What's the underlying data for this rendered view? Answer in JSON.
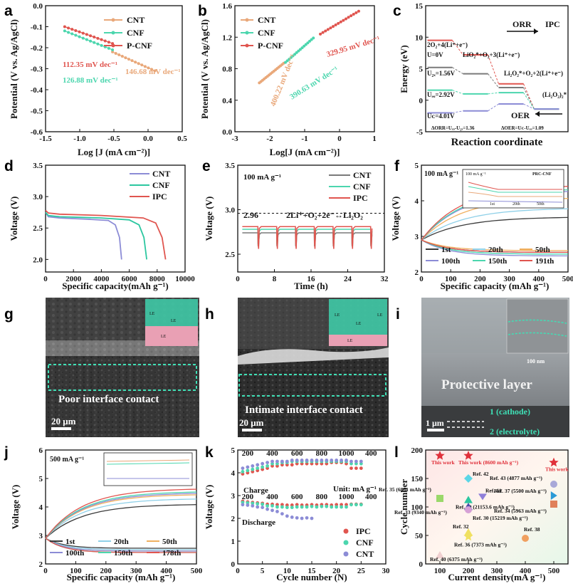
{
  "panel_labels": [
    "a",
    "b",
    "c",
    "d",
    "e",
    "f",
    "g",
    "h",
    "i",
    "j",
    "k",
    "l"
  ],
  "colors": {
    "CNT": "#e9a87a",
    "CNF": "#4cd6ae",
    "PCNF": "#e0554f",
    "IPC": "#e0554f",
    "CNT2": "#8c8cd6",
    "grey": "#7a7a7a"
  },
  "chart_data": [
    {
      "panel": "a",
      "type": "line",
      "xlabel": "Log [J (mA cm⁻²)]",
      "ylabel": "Potential (V vs. Ag/AgCl)",
      "xlim": [
        -1.5,
        0.5
      ],
      "ylim": [
        -0.6,
        0.0
      ],
      "xticks": [
        "-1.5",
        "-1.0",
        "-0.5",
        "0.0",
        "0.5"
      ],
      "yticks": [
        "0.0",
        "-0.1",
        "-0.2",
        "-0.3",
        "-0.4",
        "-0.5",
        "-0.6"
      ],
      "legend": [
        "CNT",
        "CNF",
        "P-CNF"
      ],
      "series": [
        {
          "name": "CNT",
          "x": [
            -0.52,
            0.1
          ],
          "y": [
            -0.22,
            -0.31
          ]
        },
        {
          "name": "CNF",
          "x": [
            -1.22,
            -0.52
          ],
          "y": [
            -0.12,
            -0.21
          ]
        },
        {
          "name": "P-CNF",
          "x": [
            -1.22,
            -0.52
          ],
          "y": [
            -0.1,
            -0.18
          ]
        }
      ],
      "annotations": [
        "112.35 mV dec⁻¹",
        "126.88 mV dec⁻¹",
        "146.68 mV dec⁻¹"
      ]
    },
    {
      "panel": "b",
      "type": "line",
      "xlabel": "Log[J (mA cm⁻²)]",
      "ylabel": "Potential (V vs. Ag/AgCl)",
      "xlim": [
        -3,
        1
      ],
      "ylim": [
        0.0,
        1.6
      ],
      "xticks": [
        "-3",
        "-2",
        "-1",
        "0",
        "1"
      ],
      "yticks": [
        "1.6",
        "1.2",
        "0.8",
        "0.4",
        "0.0"
      ],
      "legend": [
        "CNT",
        "CNF",
        "P-CNF"
      ],
      "series": [
        {
          "name": "CNT",
          "x": [
            -2.3,
            -1.6
          ],
          "y": [
            0.62,
            0.87
          ]
        },
        {
          "name": "CNF",
          "x": [
            -1.55,
            -0.75
          ],
          "y": [
            0.88,
            1.19
          ]
        },
        {
          "name": "P-CNF",
          "x": [
            -0.55,
            0.55
          ],
          "y": [
            1.24,
            1.53
          ]
        }
      ],
      "annotations": [
        "400.22 mV dec⁻¹",
        "390.63 mV dec⁻¹",
        "329.95 mV dec⁻¹"
      ]
    },
    {
      "panel": "c",
      "type": "line",
      "xlabel": "Reaction coordinate",
      "ylabel": "Energy (eV)",
      "ylim": [
        -5,
        15
      ],
      "yticks": [
        "15",
        "10",
        "5",
        "0",
        "-5"
      ],
      "levels": [
        "2O₂+4(Li⁺+e⁻)",
        "LiO₂*+O₂+3(Li⁺+e⁻)",
        "Li₂O₂*+O₂+2(Li⁺+e⁻)",
        "(Li₂O₂)₂*"
      ],
      "potentials": [
        "U=0V",
        "U₂ₓ=1.56V",
        "Uₑₒ=2.92V",
        "Uᴄ=4.01V"
      ],
      "series": [
        {
          "name": "U=0V",
          "y": [
            9.5,
            7.2,
            2.6,
            -1.4
          ]
        },
        {
          "name": "UDC=1.56V",
          "y": [
            5.2,
            4.2,
            2.0,
            -1.4
          ]
        },
        {
          "name": "UEQ=2.92V",
          "y": [
            1.6,
            1.0,
            1.2,
            -1.4
          ]
        },
        {
          "name": "UC=4.01V",
          "y": [
            -2.0,
            -1.7,
            -0.6,
            -1.4
          ]
        }
      ],
      "annotations": [
        "ORR",
        "IPC",
        "OER",
        "ΔORR=Uₑₒ-U₂ₓ=1.36",
        "ΔOER=Uᴄ-Uₑₒ=1.09"
      ]
    },
    {
      "panel": "d",
      "type": "line",
      "xlabel": "Specific capacity(mAh g⁻¹)",
      "ylabel": "Voltage (V)",
      "xlim": [
        0,
        10000
      ],
      "ylim": [
        1.8,
        3.5
      ],
      "xticks": [
        "0",
        "2000",
        "4000",
        "6000",
        "8000",
        "10000"
      ],
      "yticks": [
        "3.5",
        "3.0",
        "2.5",
        "2.0"
      ],
      "legend": [
        "CNT",
        "CNF",
        "IPC"
      ],
      "series": [
        {
          "name": "CNT",
          "x": [
            0,
            200,
            1000,
            3000,
            4500,
            5000,
            5300,
            5450
          ],
          "y": [
            2.75,
            2.68,
            2.66,
            2.64,
            2.62,
            2.55,
            2.35,
            2.0
          ]
        },
        {
          "name": "CNF",
          "x": [
            0,
            200,
            1000,
            4000,
            6000,
            6700,
            7050,
            7250
          ],
          "y": [
            2.75,
            2.7,
            2.68,
            2.66,
            2.63,
            2.55,
            2.35,
            2.0
          ]
        },
        {
          "name": "IPC",
          "x": [
            0,
            200,
            1000,
            4000,
            7000,
            7900,
            8350,
            8600
          ],
          "y": [
            2.78,
            2.74,
            2.72,
            2.7,
            2.66,
            2.58,
            2.35,
            2.0
          ]
        }
      ]
    },
    {
      "panel": "e",
      "type": "line",
      "xlabel": "Time (h)",
      "ylabel": "Voltage (V)",
      "xlim": [
        0,
        32
      ],
      "ylim": [
        2.3,
        3.5
      ],
      "xticks": [
        "0",
        "8",
        "16",
        "24",
        "32"
      ],
      "yticks": [
        "3.5",
        "3.0",
        "2.5"
      ],
      "legend": [
        "CNT",
        "CNF",
        "IPC"
      ],
      "annotations": [
        "100 mA g⁻¹",
        "2.96",
        "2Li⁺+O₂+2e⁻↔Li₂O₂"
      ],
      "reference_line": 2.96
    },
    {
      "panel": "f",
      "type": "line",
      "xlabel": "Specific capacity (mAh g⁻¹)",
      "ylabel": "Voltage (V)",
      "xlim": [
        0,
        500
      ],
      "ylim": [
        2.0,
        5.0
      ],
      "xticks": [
        "0",
        "100",
        "200",
        "300",
        "400",
        "500"
      ],
      "yticks": [
        "5",
        "4",
        "3",
        "2"
      ],
      "legend": [
        "1st",
        "20th",
        "50th",
        "100th",
        "150th",
        "191th"
      ],
      "annotations": [
        "100 mA g⁻¹"
      ],
      "inset_labels": [
        "100 mA g⁻¹",
        "PRC-CNF",
        "1st",
        "20th",
        "50th"
      ]
    },
    {
      "panel": "j",
      "type": "line",
      "xlabel": "Specific capacity (mAh g⁻¹)",
      "ylabel": "Voltage (V)",
      "xlim": [
        0,
        500
      ],
      "ylim": [
        2.0,
        6.0
      ],
      "xticks": [
        "0",
        "100",
        "200",
        "300",
        "400",
        "500"
      ],
      "yticks": [
        "6",
        "5",
        "4",
        "3",
        "2"
      ],
      "legend": [
        "1st",
        "20th",
        "50th",
        "100th",
        "150th",
        "178th"
      ],
      "annotations": [
        "500 mA g⁻¹"
      ]
    },
    {
      "panel": "k",
      "type": "scatter",
      "xlabel": "Cycle number (N)",
      "ylabel": "Voltage (V)",
      "xlim": [
        0,
        30
      ],
      "ylim": [
        0,
        5
      ],
      "xticks": [
        "0",
        "5",
        "10",
        "15",
        "20",
        "25",
        "30"
      ],
      "yticks": [
        "0",
        "1",
        "2",
        "3",
        "4",
        "5"
      ],
      "legend": [
        "IPC",
        "CNF",
        "CNT"
      ],
      "annotations": [
        "Charge",
        "Discharge",
        "Unit: mA g⁻¹"
      ],
      "rate_labels_top": [
        "200",
        "400",
        "600",
        "800",
        "1000",
        "400"
      ],
      "rate_labels_bottom": [
        "200",
        "400",
        "600",
        "800",
        "1000",
        "400"
      ]
    },
    {
      "panel": "l",
      "type": "scatter",
      "xlabel": "Current density(mA g⁻¹)",
      "ylabel": "Cycle number",
      "xlim": [
        50,
        550
      ],
      "ylim": [
        0,
        200
      ],
      "xticks": [
        "100",
        "200",
        "300",
        "400",
        "500"
      ],
      "yticks": [
        "0",
        "50",
        "100",
        "150",
        "200"
      ],
      "points": [
        {
          "label": "This work",
          "x": 100,
          "y": 190,
          "shape": "star",
          "color": "#e0303a"
        },
        {
          "label": "This work (8600 mAh g⁻¹)",
          "x": 200,
          "y": 190,
          "shape": "star",
          "color": "#e0303a"
        },
        {
          "label": "This work",
          "x": 500,
          "y": 178,
          "shape": "star",
          "color": "#e0303a"
        },
        {
          "label": "Ref. 42",
          "x": 200,
          "y": 150,
          "shape": "diamond",
          "color": "#5bd6e6"
        },
        {
          "label": "Ref. 43 (4877 mAh g⁻¹)",
          "x": 500,
          "y": 140,
          "shape": "circle",
          "color": "#a8a8d8"
        },
        {
          "label": "Ref. 35 (6891 mAh g⁻¹)",
          "x": 100,
          "y": 115,
          "shape": "square",
          "color": "#9ad86a"
        },
        {
          "label": "Ref. 41",
          "x": 250,
          "y": 118,
          "shape": "triangle-down",
          "color": "#8f7fd9"
        },
        {
          "label": "Ref. 37 (5500 mAh g⁻¹)",
          "x": 500,
          "y": 120,
          "shape": "triangle-right",
          "color": "#2a9ad6"
        },
        {
          "label": "Ref. 39 (21153.6 mAh g⁻¹)",
          "x": 200,
          "y": 112,
          "shape": "triangle",
          "color": "#2cc7a0"
        },
        {
          "label": "Ref. 33 (9340 mAh g⁻¹)",
          "x": 200,
          "y": 100,
          "shape": "triangle",
          "color": "#4b4baa"
        },
        {
          "label": "Ref. 34 (5963 mAh g⁻¹)",
          "x": 500,
          "y": 105,
          "shape": "square",
          "color": "#e0805a"
        },
        {
          "label": "Ref. 30 (15219 mAh g⁻¹)",
          "x": 200,
          "y": 95,
          "shape": "circle",
          "color": "#d6a0d6"
        },
        {
          "label": "Ref. 32",
          "x": 200,
          "y": 55,
          "shape": "triangle",
          "color": "#f0e060"
        },
        {
          "label": "Ref. 36 (7373 mAh g⁻¹)",
          "x": 200,
          "y": 48,
          "shape": "star",
          "color": "#f0e060"
        },
        {
          "label": "Ref. 38",
          "x": 400,
          "y": 45,
          "shape": "circle",
          "color": "#f0a060"
        },
        {
          "label": "Ref. 40 (6375 mAh g⁻¹)",
          "x": 100,
          "y": 15,
          "shape": "triangle",
          "color": "#f0d0d0"
        }
      ]
    }
  ],
  "images": {
    "g": {
      "caption": "Poor interface contact",
      "scale": "20 μm",
      "labels": [
        "LE",
        "LE",
        "LE"
      ]
    },
    "h": {
      "caption": "Intimate interface contact",
      "scale": "20 μm",
      "labels": [
        "LE",
        "LE",
        "LE",
        "LE"
      ]
    },
    "i": {
      "caption": "Protective layer",
      "scale": "1 μm",
      "inset_scale": "100 nm",
      "labels": [
        "1 (cathode)",
        "2 (electrolyte)"
      ]
    }
  }
}
